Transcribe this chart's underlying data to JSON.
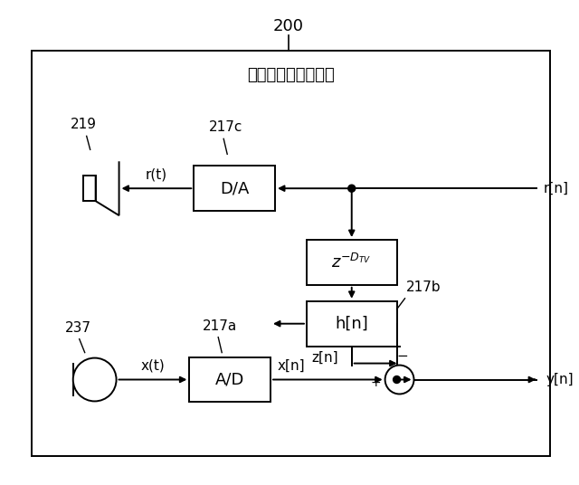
{
  "bg_color": "#ffffff",
  "line_color": "#000000",
  "title_200": "200",
  "title_box": "テレビジョン受像機",
  "label_219": "219",
  "label_217c": "217c",
  "label_217b": "217b",
  "label_217a": "217a",
  "label_237": "237",
  "label_rt": "r(t)",
  "label_rn": "r[n]",
  "label_xt": "x(t)",
  "label_xn": "x[n]",
  "label_yn": "y[n]",
  "label_zn": "z[n]",
  "label_plus": "+",
  "label_minus": "−",
  "label_DA": "D/A",
  "label_AD": "A/D",
  "label_hn": "h[n]",
  "label_delay": "$z^{-D_{TV}}$"
}
